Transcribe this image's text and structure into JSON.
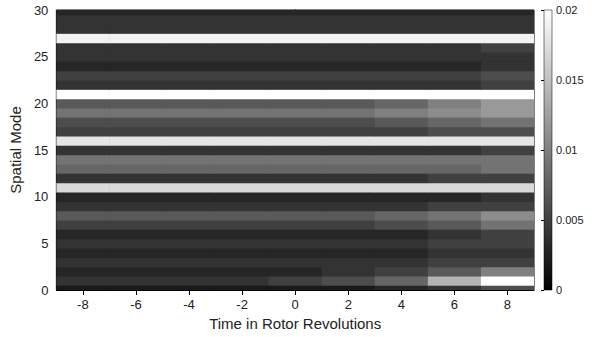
{
  "chart_data": {
    "type": "heatmap",
    "x_label": "Time in Rotor Revolutions",
    "y_label": "Spatial Mode",
    "xlim": [
      -9,
      9
    ],
    "xticks": [
      -8,
      -6,
      -4,
      -2,
      0,
      2,
      4,
      6,
      8
    ],
    "ylim": [
      0,
      30
    ],
    "yticks": [
      0,
      5,
      10,
      15,
      20,
      25,
      30
    ],
    "x_bins": [
      -9,
      -7,
      -5,
      -3,
      -1,
      1,
      3,
      5,
      7,
      9
    ],
    "y": [
      0,
      1,
      2,
      3,
      4,
      5,
      6,
      7,
      8,
      9,
      10,
      11,
      12,
      13,
      14,
      15,
      16,
      17,
      18,
      19,
      20,
      21,
      22,
      23,
      24,
      25,
      26,
      27,
      28,
      29,
      30
    ],
    "cells": [
      [
        0.002,
        0.002,
        0.002,
        0.002,
        0.002,
        0.002,
        0.003,
        0.004,
        0.006
      ],
      [
        0.004,
        0.004,
        0.004,
        0.004,
        0.005,
        0.006,
        0.008,
        0.014,
        0.02
      ],
      [
        0.003,
        0.003,
        0.003,
        0.003,
        0.003,
        0.004,
        0.005,
        0.007,
        0.01
      ],
      [
        0.004,
        0.004,
        0.004,
        0.004,
        0.004,
        0.004,
        0.004,
        0.005,
        0.005
      ],
      [
        0.003,
        0.003,
        0.003,
        0.003,
        0.003,
        0.003,
        0.003,
        0.004,
        0.004
      ],
      [
        0.004,
        0.004,
        0.004,
        0.004,
        0.004,
        0.004,
        0.004,
        0.005,
        0.005
      ],
      [
        0.003,
        0.003,
        0.003,
        0.003,
        0.003,
        0.003,
        0.003,
        0.004,
        0.005
      ],
      [
        0.005,
        0.005,
        0.005,
        0.005,
        0.005,
        0.005,
        0.006,
        0.007,
        0.009
      ],
      [
        0.007,
        0.007,
        0.007,
        0.007,
        0.007,
        0.007,
        0.008,
        0.009,
        0.011
      ],
      [
        0.004,
        0.004,
        0.004,
        0.004,
        0.004,
        0.004,
        0.004,
        0.005,
        0.005
      ],
      [
        0.003,
        0.003,
        0.003,
        0.003,
        0.003,
        0.003,
        0.003,
        0.003,
        0.004
      ],
      [
        0.017,
        0.017,
        0.017,
        0.017,
        0.017,
        0.017,
        0.017,
        0.017,
        0.017
      ],
      [
        0.004,
        0.004,
        0.004,
        0.004,
        0.004,
        0.004,
        0.004,
        0.005,
        0.005
      ],
      [
        0.008,
        0.008,
        0.008,
        0.008,
        0.008,
        0.008,
        0.008,
        0.008,
        0.009
      ],
      [
        0.009,
        0.009,
        0.009,
        0.009,
        0.009,
        0.009,
        0.009,
        0.009,
        0.009
      ],
      [
        0.004,
        0.004,
        0.004,
        0.004,
        0.004,
        0.004,
        0.004,
        0.004,
        0.005
      ],
      [
        0.018,
        0.018,
        0.018,
        0.018,
        0.018,
        0.018,
        0.018,
        0.018,
        0.018
      ],
      [
        0.005,
        0.005,
        0.005,
        0.005,
        0.005,
        0.005,
        0.005,
        0.006,
        0.006
      ],
      [
        0.006,
        0.006,
        0.006,
        0.006,
        0.006,
        0.006,
        0.007,
        0.008,
        0.009
      ],
      [
        0.009,
        0.009,
        0.009,
        0.009,
        0.009,
        0.009,
        0.01,
        0.011,
        0.012
      ],
      [
        0.007,
        0.007,
        0.007,
        0.007,
        0.007,
        0.007,
        0.008,
        0.01,
        0.012
      ],
      [
        0.02,
        0.02,
        0.02,
        0.02,
        0.02,
        0.02,
        0.02,
        0.02,
        0.02
      ],
      [
        0.004,
        0.004,
        0.004,
        0.004,
        0.004,
        0.004,
        0.004,
        0.004,
        0.005
      ],
      [
        0.005,
        0.005,
        0.005,
        0.005,
        0.005,
        0.005,
        0.005,
        0.005,
        0.006
      ],
      [
        0.003,
        0.003,
        0.003,
        0.003,
        0.003,
        0.003,
        0.003,
        0.003,
        0.004
      ],
      [
        0.004,
        0.004,
        0.004,
        0.004,
        0.004,
        0.004,
        0.004,
        0.004,
        0.004
      ],
      [
        0.004,
        0.004,
        0.004,
        0.004,
        0.004,
        0.004,
        0.004,
        0.004,
        0.005
      ],
      [
        0.019,
        0.019,
        0.019,
        0.019,
        0.019,
        0.019,
        0.019,
        0.019,
        0.019
      ],
      [
        0.004,
        0.004,
        0.004,
        0.004,
        0.004,
        0.004,
        0.004,
        0.004,
        0.004
      ],
      [
        0.004,
        0.004,
        0.004,
        0.004,
        0.004,
        0.004,
        0.004,
        0.004,
        0.004
      ],
      [
        0.003,
        0.003,
        0.003,
        0.003,
        0.003,
        0.003,
        0.003,
        0.003,
        0.003
      ]
    ],
    "colorbar_range": [
      0,
      0.02
    ],
    "colorbar_ticks": [
      0,
      0.005,
      0.01,
      0.015,
      0.02
    ]
  }
}
